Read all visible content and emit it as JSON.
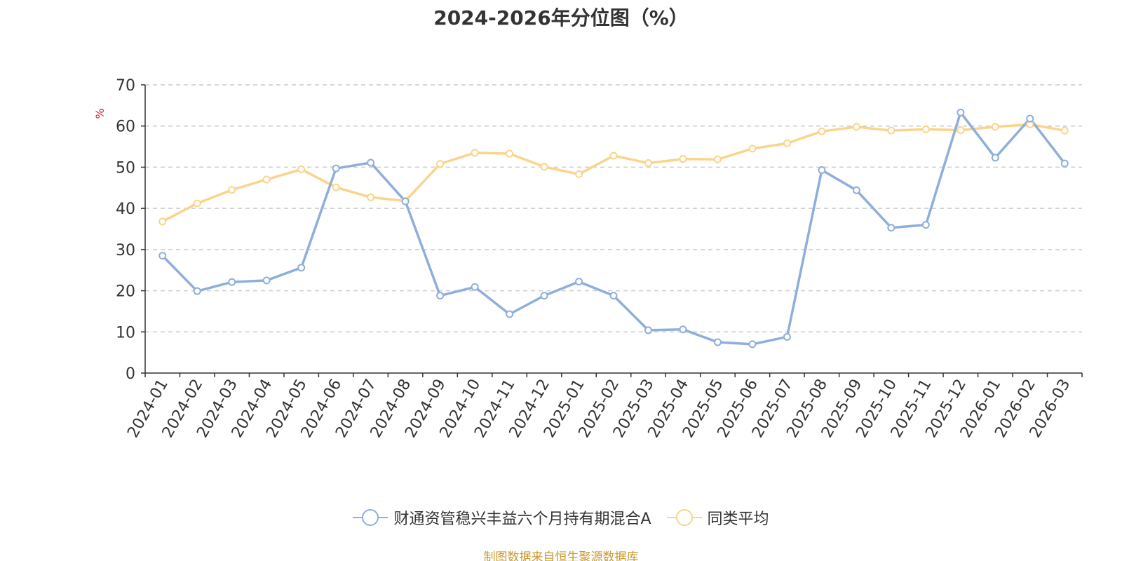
{
  "chart_data": {
    "type": "line",
    "title": "2024-2026年分位图（%）",
    "ylabel": "%",
    "xlabel": "",
    "ylim": [
      0,
      70
    ],
    "yticks": [
      0,
      10,
      20,
      30,
      40,
      50,
      60,
      70
    ],
    "grid": true,
    "legend_position": "bottom",
    "categories": [
      "2024-01",
      "2024-02",
      "2024-03",
      "2024-04",
      "2024-05",
      "2024-06",
      "2024-07",
      "2024-08",
      "2024-09",
      "2024-10",
      "2024-11",
      "2024-12",
      "2025-01",
      "2025-02",
      "2025-03",
      "2025-04",
      "2025-05",
      "2025-06",
      "2025-07",
      "2025-08",
      "2025-09",
      "2025-10",
      "2025-11",
      "2025-12",
      "2026-01",
      "2026-02",
      "2026-03"
    ],
    "series": [
      {
        "name": "财通资管稳兴丰益六个月持有期混合A",
        "color": "#8eaedb",
        "values": [
          28.5,
          19.9,
          22.1,
          22.5,
          25.6,
          49.7,
          51.1,
          41.7,
          18.8,
          20.9,
          14.3,
          18.8,
          22.2,
          18.8,
          10.4,
          10.6,
          7.5,
          7.0,
          8.8,
          49.3,
          44.4,
          35.3,
          36.0,
          63.3,
          52.3,
          61.8,
          50.9
        ]
      },
      {
        "name": "同类平均",
        "color": "#fad48b",
        "values": [
          36.8,
          41.2,
          44.5,
          47.0,
          49.5,
          45.1,
          42.7,
          41.8,
          50.8,
          53.5,
          53.3,
          50.1,
          48.3,
          52.8,
          51.0,
          52.0,
          51.9,
          54.5,
          55.8,
          58.7,
          59.8,
          58.9,
          59.2,
          59.0,
          59.8,
          60.4,
          58.9
        ]
      }
    ],
    "source": "制图数据来自恒生聚源数据库",
    "source_color": "#c9982d",
    "ylabel_color": "#e02020"
  }
}
